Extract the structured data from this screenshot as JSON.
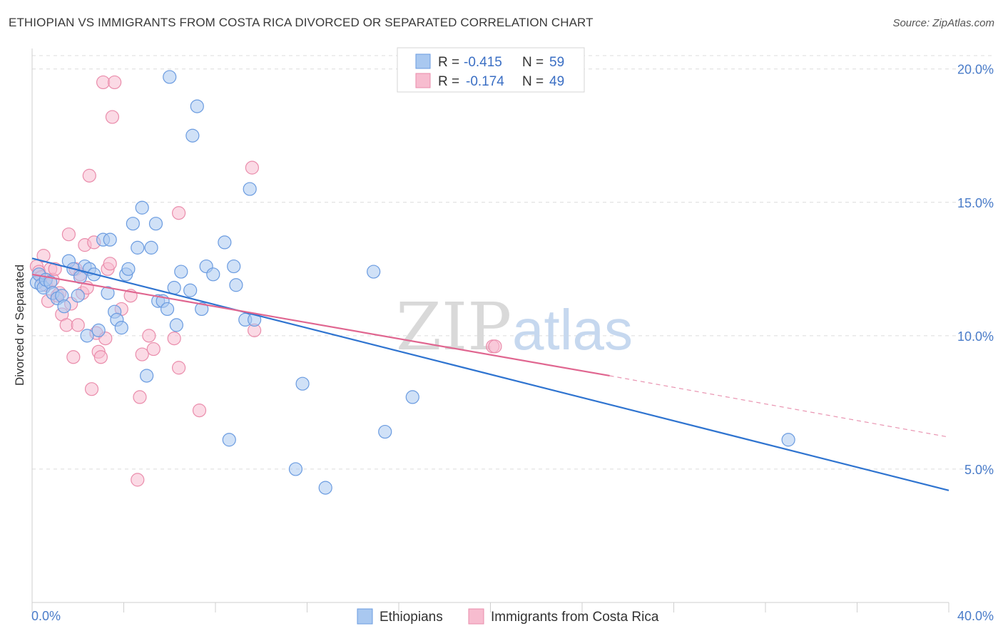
{
  "header": {
    "title": "ETHIOPIAN VS IMMIGRANTS FROM COSTA RICA DIVORCED OR SEPARATED CORRELATION CHART",
    "source": "Source: ZipAtlas.com"
  },
  "watermark": {
    "part1": "ZIP",
    "part2": "atlas"
  },
  "colors": {
    "blue_fill": "#a9c8f0",
    "blue_stroke": "#6a9be0",
    "blue_line": "#2f74d0",
    "pink_fill": "#f7bccf",
    "pink_stroke": "#ea8cab",
    "pink_line": "#e06690",
    "grid": "#dcdcdc",
    "tick_label": "#4a7cc9"
  },
  "legend": {
    "rows": [
      {
        "r_label": "R =",
        "r_value": "-0.415",
        "n_label": "N =",
        "n_value": "59"
      },
      {
        "r_label": "R =",
        "r_value": "-0.174",
        "n_label": "N =",
        "n_value": "49"
      }
    ]
  },
  "chart_data": {
    "type": "scatter",
    "title": "ETHIOPIAN VS IMMIGRANTS FROM COSTA RICA DIVORCED OR SEPARATED CORRELATION CHART",
    "xlabel": "",
    "ylabel": "Divorced or Separated",
    "xlim": [
      0,
      40
    ],
    "ylim": [
      0,
      20.5
    ],
    "x_tick_labels": [
      "0.0%",
      "40.0%"
    ],
    "y_ticks": [
      5,
      10,
      15,
      20
    ],
    "y_tick_labels": [
      "5.0%",
      "10.0%",
      "15.0%",
      "20.0%"
    ],
    "grid": true,
    "legend_position": "top-center",
    "series": [
      {
        "name": "Ethiopians",
        "color": "#a9c8f0",
        "r": -0.415,
        "n": 59,
        "trend": {
          "x0": 0,
          "y0": 12.9,
          "x1": 40,
          "y1": 4.2
        },
        "points": [
          [
            0.2,
            12.0
          ],
          [
            0.3,
            12.3
          ],
          [
            0.4,
            11.9
          ],
          [
            0.5,
            11.8
          ],
          [
            0.6,
            12.1
          ],
          [
            0.8,
            12.0
          ],
          [
            0.9,
            11.6
          ],
          [
            1.1,
            11.4
          ],
          [
            1.3,
            11.5
          ],
          [
            1.4,
            11.1
          ],
          [
            1.6,
            12.8
          ],
          [
            1.8,
            12.5
          ],
          [
            2.0,
            11.5
          ],
          [
            2.1,
            12.2
          ],
          [
            2.3,
            12.6
          ],
          [
            2.4,
            10.0
          ],
          [
            2.5,
            12.5
          ],
          [
            2.7,
            12.3
          ],
          [
            2.9,
            10.2
          ],
          [
            3.1,
            13.6
          ],
          [
            3.3,
            11.6
          ],
          [
            3.4,
            13.6
          ],
          [
            3.6,
            10.9
          ],
          [
            3.7,
            10.6
          ],
          [
            3.9,
            10.3
          ],
          [
            4.1,
            12.3
          ],
          [
            4.2,
            12.5
          ],
          [
            4.4,
            14.2
          ],
          [
            4.6,
            13.3
          ],
          [
            4.8,
            14.8
          ],
          [
            5.0,
            8.5
          ],
          [
            5.2,
            13.3
          ],
          [
            5.4,
            14.2
          ],
          [
            5.5,
            11.3
          ],
          [
            5.7,
            11.3
          ],
          [
            5.9,
            11.0
          ],
          [
            6.0,
            19.7
          ],
          [
            6.2,
            11.8
          ],
          [
            6.3,
            10.4
          ],
          [
            6.5,
            12.4
          ],
          [
            6.9,
            11.7
          ],
          [
            7.0,
            17.5
          ],
          [
            7.2,
            18.6
          ],
          [
            7.4,
            11.0
          ],
          [
            7.6,
            12.6
          ],
          [
            7.9,
            12.3
          ],
          [
            8.4,
            13.5
          ],
          [
            8.8,
            12.6
          ],
          [
            8.6,
            6.1
          ],
          [
            8.9,
            11.9
          ],
          [
            9.3,
            10.6
          ],
          [
            9.5,
            15.5
          ],
          [
            9.7,
            10.6
          ],
          [
            11.5,
            5.0
          ],
          [
            11.8,
            8.2
          ],
          [
            12.8,
            4.3
          ],
          [
            14.9,
            12.4
          ],
          [
            15.4,
            6.4
          ],
          [
            16.6,
            7.7
          ],
          [
            33.0,
            6.1
          ]
        ]
      },
      {
        "name": "Immigrants from Costa Rica",
        "color": "#f7bccf",
        "r": -0.174,
        "n": 49,
        "trend": {
          "x0": 0,
          "y0": 12.3,
          "x1": 25.2,
          "y1": 8.5,
          "dash_x1": 40,
          "dash_y1": 6.2
        },
        "points": [
          [
            0.2,
            12.6
          ],
          [
            0.3,
            12.4
          ],
          [
            0.4,
            12.2
          ],
          [
            0.5,
            13.0
          ],
          [
            0.6,
            11.9
          ],
          [
            0.7,
            11.3
          ],
          [
            0.8,
            12.5
          ],
          [
            0.9,
            12.1
          ],
          [
            1.0,
            12.5
          ],
          [
            1.1,
            11.5
          ],
          [
            1.2,
            11.6
          ],
          [
            1.3,
            10.8
          ],
          [
            1.5,
            10.4
          ],
          [
            1.6,
            13.8
          ],
          [
            1.7,
            11.2
          ],
          [
            1.8,
            9.2
          ],
          [
            1.9,
            12.5
          ],
          [
            2.0,
            10.4
          ],
          [
            2.1,
            12.3
          ],
          [
            2.2,
            11.6
          ],
          [
            2.3,
            13.4
          ],
          [
            2.4,
            11.8
          ],
          [
            2.5,
            16.0
          ],
          [
            2.6,
            8.0
          ],
          [
            2.7,
            13.5
          ],
          [
            2.8,
            10.1
          ],
          [
            2.9,
            9.4
          ],
          [
            3.0,
            9.2
          ],
          [
            3.1,
            19.5
          ],
          [
            3.2,
            9.9
          ],
          [
            3.3,
            12.5
          ],
          [
            3.4,
            12.7
          ],
          [
            3.5,
            18.2
          ],
          [
            3.6,
            19.5
          ],
          [
            3.9,
            11.0
          ],
          [
            4.3,
            11.5
          ],
          [
            4.7,
            7.7
          ],
          [
            4.8,
            9.3
          ],
          [
            5.1,
            10.0
          ],
          [
            5.3,
            9.5
          ],
          [
            4.6,
            4.6
          ],
          [
            6.2,
            9.9
          ],
          [
            6.4,
            14.6
          ],
          [
            6.4,
            8.8
          ],
          [
            7.3,
            7.2
          ],
          [
            9.6,
            16.3
          ],
          [
            9.7,
            10.2
          ],
          [
            20.1,
            9.6
          ],
          [
            20.2,
            9.6
          ]
        ]
      }
    ]
  },
  "bottom_legend": [
    {
      "label": "Ethiopians",
      "color": "#a9c8f0"
    },
    {
      "label": "Immigrants from Costa Rica",
      "color": "#f7bccf"
    }
  ]
}
